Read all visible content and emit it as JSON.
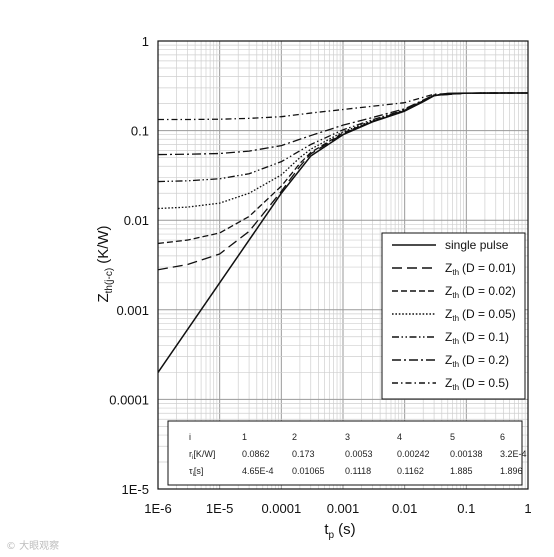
{
  "chart_data": {
    "type": "line",
    "title": "",
    "xlabel_main": "t",
    "xlabel_sub": "p",
    "xlabel_unit": "(s)",
    "ylabel_main": "Z",
    "ylabel_sub": "th(j-c)",
    "ylabel_unit": "(K/W)",
    "x_scale": "log",
    "y_scale": "log",
    "xlim": [
      1e-06,
      1
    ],
    "ylim": [
      1e-05,
      1
    ],
    "grid": true,
    "x_tick_labels": [
      "1E-6",
      "1E-5",
      "0.0001",
      "0.001",
      "0.01",
      "0.1",
      "1"
    ],
    "y_tick_labels": [
      "1E-5",
      "0.0001",
      "0.001",
      "0.01",
      "0.1",
      "1"
    ],
    "legend_position": "right",
    "legend": [
      {
        "label": "single pulse",
        "dash": "solid"
      },
      {
        "label_main": "Z",
        "label_sub": "th",
        "label_rest": "(D = 0.01)",
        "dash": "long-dash"
      },
      {
        "label_main": "Z",
        "label_sub": "th",
        "label_rest": "(D = 0.02)",
        "dash": "dash"
      },
      {
        "label_main": "Z",
        "label_sub": "th",
        "label_rest": "(D = 0.05)",
        "dash": "dot"
      },
      {
        "label_main": "Z",
        "label_sub": "th",
        "label_rest": "(D = 0.1)",
        "dash": "dash-dot-dot"
      },
      {
        "label_main": "Z",
        "label_sub": "th",
        "label_rest": "(D = 0.2)",
        "dash": "dash-dot"
      },
      {
        "label_main": "Z",
        "label_sub": "th",
        "label_rest": "(D = 0.5)",
        "dash": "dash-dot-fine"
      }
    ],
    "table": {
      "header": [
        "i",
        "1",
        "2",
        "3",
        "4",
        "5",
        "6"
      ],
      "rows": [
        {
          "label_main": "r",
          "label_sub": "i",
          "label_rest": "[K/W]",
          "values": [
            "0.0862",
            "0.173",
            "0.0053",
            "0.00242",
            "0.00138",
            "3.2E-4"
          ]
        },
        {
          "label_main": "τ",
          "label_sub": "i",
          "label_rest": "[s]",
          "values": [
            "4.65E-4",
            "0.01065",
            "0.1118",
            "0.1162",
            "1.885",
            "1.896"
          ]
        }
      ]
    },
    "series": [
      {
        "name": "single pulse",
        "x": [
          1e-06,
          3e-06,
          1e-05,
          3e-05,
          0.0001,
          0.0003,
          0.001,
          0.003,
          0.01,
          0.02,
          0.03,
          0.05,
          0.1,
          0.3,
          1
        ],
        "y": [
          0.0002,
          0.0006,
          0.002,
          0.006,
          0.02,
          0.052,
          0.09,
          0.125,
          0.165,
          0.21,
          0.245,
          0.26,
          0.262,
          0.263,
          0.263
        ]
      },
      {
        "name": "D = 0.01",
        "x": [
          1e-06,
          3e-06,
          1e-05,
          3e-05,
          0.0001,
          0.0002,
          0.0003,
          0.001,
          0.003,
          0.01,
          0.03,
          0.1,
          1
        ],
        "y": [
          0.0028,
          0.0032,
          0.0042,
          0.0075,
          0.021,
          0.04,
          0.055,
          0.092,
          0.126,
          0.167,
          0.246,
          0.262,
          0.263
        ]
      },
      {
        "name": "D = 0.02",
        "x": [
          1e-06,
          3e-06,
          1e-05,
          3e-05,
          0.0001,
          0.0002,
          0.0003,
          0.001,
          0.003,
          0.01,
          0.03,
          0.1,
          1
        ],
        "y": [
          0.0055,
          0.006,
          0.0072,
          0.011,
          0.024,
          0.043,
          0.057,
          0.094,
          0.127,
          0.168,
          0.247,
          0.262,
          0.263
        ]
      },
      {
        "name": "D = 0.05",
        "x": [
          1e-06,
          3e-06,
          1e-05,
          3e-05,
          0.0001,
          0.0002,
          0.0003,
          0.001,
          0.003,
          0.01,
          0.03,
          0.1,
          1
        ],
        "y": [
          0.0135,
          0.014,
          0.0155,
          0.02,
          0.032,
          0.05,
          0.062,
          0.097,
          0.129,
          0.169,
          0.248,
          0.262,
          0.263
        ]
      },
      {
        "name": "D = 0.1",
        "x": [
          1e-06,
          3e-06,
          1e-05,
          3e-05,
          0.0001,
          0.0003,
          0.001,
          0.003,
          0.01,
          0.03,
          0.1,
          1
        ],
        "y": [
          0.027,
          0.0275,
          0.029,
          0.033,
          0.045,
          0.07,
          0.102,
          0.132,
          0.171,
          0.249,
          0.262,
          0.263
        ]
      },
      {
        "name": "D = 0.2",
        "x": [
          1e-06,
          3e-06,
          1e-05,
          3e-05,
          0.0001,
          0.0003,
          0.001,
          0.003,
          0.01,
          0.03,
          0.1,
          1
        ],
        "y": [
          0.054,
          0.0545,
          0.0555,
          0.059,
          0.068,
          0.088,
          0.115,
          0.14,
          0.175,
          0.25,
          0.262,
          0.263
        ]
      },
      {
        "name": "D = 0.5",
        "x": [
          1e-06,
          3e-06,
          1e-05,
          3e-05,
          0.0001,
          0.0003,
          0.001,
          0.003,
          0.01,
          0.03,
          0.1,
          1
        ],
        "y": [
          0.133,
          0.133,
          0.134,
          0.137,
          0.143,
          0.157,
          0.172,
          0.187,
          0.205,
          0.255,
          0.262,
          0.263
        ]
      }
    ]
  },
  "watermark": "© 大眼观察"
}
